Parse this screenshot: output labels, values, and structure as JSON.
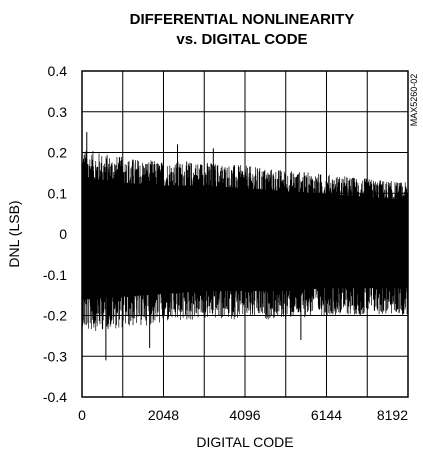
{
  "chart_data": {
    "type": "line",
    "title_line1": "DIFFERENTIAL NONLINEARITY",
    "title_line2": "vs. DIGITAL CODE",
    "xlabel": "DIGITAL CODE",
    "ylabel": "DNL (LSB)",
    "part_number": "MAX5260-02",
    "xlim": [
      0,
      8192
    ],
    "ylim": [
      -0.4,
      0.4
    ],
    "x_ticks": [
      0,
      2048,
      4096,
      6144,
      8192
    ],
    "x_tick_labels": [
      "0",
      "2048",
      "4096",
      "6144",
      "8192"
    ],
    "y_ticks": [
      0.4,
      0.3,
      0.2,
      0.1,
      0,
      -0.1,
      -0.2,
      -0.3,
      -0.4
    ],
    "y_tick_labels": [
      "0.4",
      "0.3",
      "0.2",
      "0.1",
      "0",
      "-0.1",
      "-0.2",
      "-0.3",
      "-0.4"
    ],
    "x_gridlines": [
      1024,
      2048,
      3072,
      4096,
      5120,
      6144,
      7168
    ],
    "y_gridlines": [
      0.3,
      0.2,
      0.1,
      0,
      -0.1,
      -0.2,
      -0.3
    ],
    "grid": true,
    "series": [
      {
        "upper_envelope": [
          {
            "x": 0,
            "y": 0.2
          },
          {
            "x": 1024,
            "y": 0.18
          },
          {
            "x": 2048,
            "y": 0.17
          },
          {
            "x": 3072,
            "y": 0.17
          },
          {
            "x": 4096,
            "y": 0.16
          },
          {
            "x": 5120,
            "y": 0.15
          },
          {
            "x": 6144,
            "y": 0.14
          },
          {
            "x": 7168,
            "y": 0.13
          },
          {
            "x": 8192,
            "y": 0.12
          }
        ],
        "lower_envelope": [
          {
            "x": 0,
            "y": -0.23
          },
          {
            "x": 1024,
            "y": -0.22
          },
          {
            "x": 2048,
            "y": -0.21
          },
          {
            "x": 3072,
            "y": -0.2
          },
          {
            "x": 4096,
            "y": -0.2
          },
          {
            "x": 5120,
            "y": -0.2
          },
          {
            "x": 6144,
            "y": -0.19
          },
          {
            "x": 7168,
            "y": -0.19
          },
          {
            "x": 8192,
            "y": -0.19
          }
        ],
        "peak_max": 0.25,
        "peak_min": -0.31
      }
    ]
  }
}
